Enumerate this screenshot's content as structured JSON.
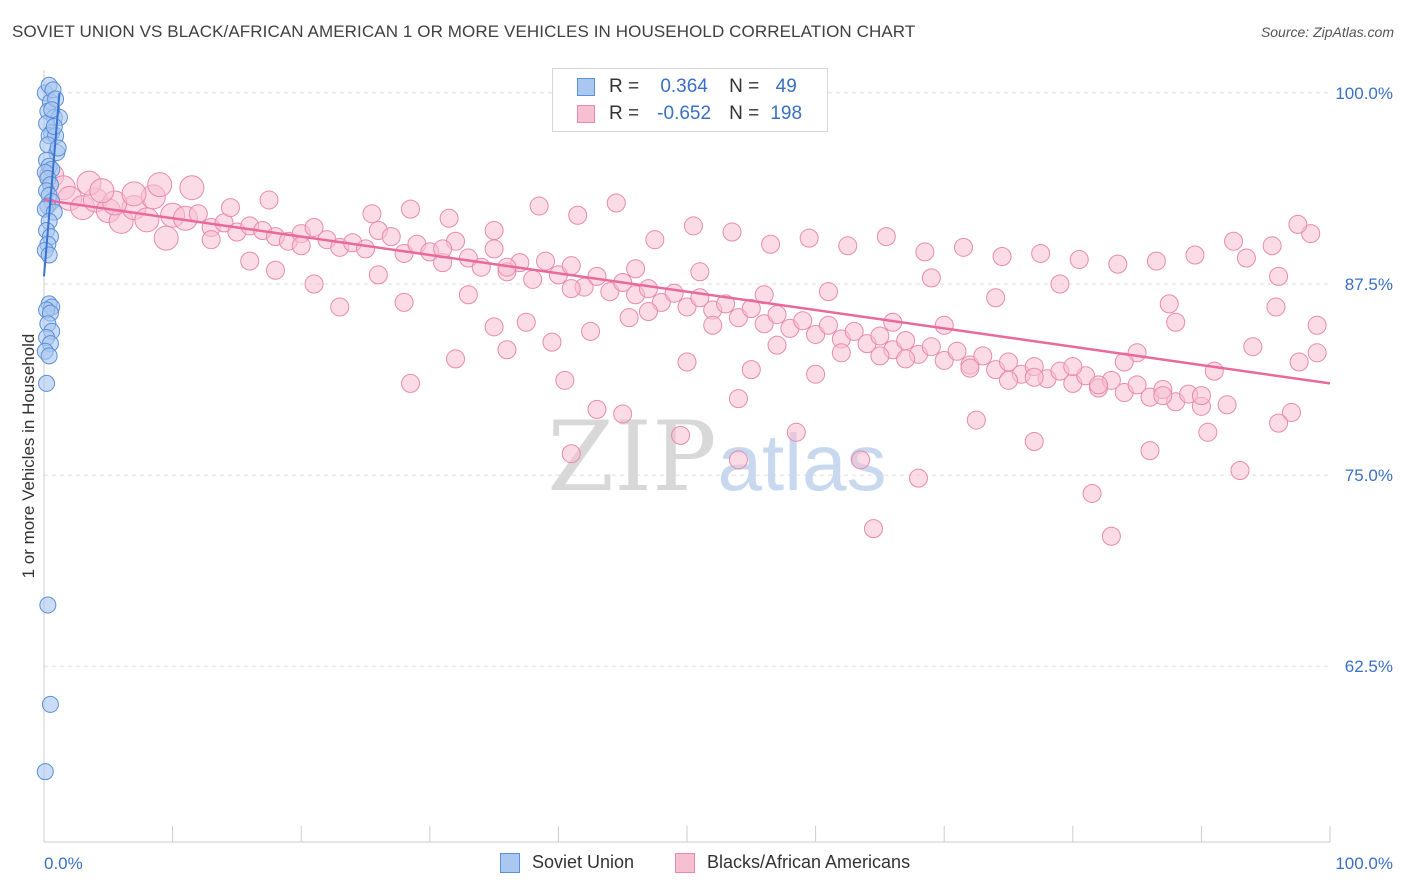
{
  "title": "SOVIET UNION VS BLACK/AFRICAN AMERICAN 1 OR MORE VEHICLES IN HOUSEHOLD CORRELATION CHART",
  "source": "Source: ZipAtlas.com",
  "watermark": {
    "zip": "ZIP",
    "atlas": "atlas"
  },
  "legend": {
    "rows": [
      {
        "r_label": "R =",
        "r_value": "0.364",
        "n_label": "N =",
        "n_value": "49"
      },
      {
        "r_label": "R =",
        "r_value": "-0.652",
        "n_label": "N =",
        "n_value": "198"
      }
    ]
  },
  "bottom_legend": [
    "Soviet Union",
    "Blacks/African Americans"
  ],
  "colors": {
    "blue_fill": "#a9c7f0",
    "blue_stroke": "#5b8fd6",
    "blue_line": "#3a74d0",
    "pink_fill": "#f7c0d2",
    "pink_stroke": "#e88aab",
    "pink_line": "#e8699a",
    "axis_label": "#3a6fc4",
    "grid": "#dddddd"
  },
  "chart_data": {
    "type": "scatter",
    "title": "SOVIET UNION VS BLACK/AFRICAN AMERICAN 1 OR MORE VEHICLES IN HOUSEHOLD CORRELATION CHART",
    "xlabel": "",
    "ylabel": "1 or more Vehicles in Household",
    "xlim": [
      0,
      100
    ],
    "ylim": [
      51,
      101.5
    ],
    "x_tick_labels": [
      "0.0%",
      "100.0%"
    ],
    "y_ticks": [
      100,
      87.5,
      75,
      62.5
    ],
    "y_tick_labels": [
      "100.0%",
      "87.5%",
      "75.0%",
      "62.5%"
    ],
    "grid": "horizontal dashed",
    "legend_position": "top-center",
    "series": [
      {
        "name": "Soviet Union",
        "r": 0.364,
        "n": 49,
        "trend": {
          "x": [
            0,
            1.2
          ],
          "y": [
            88.0,
            100.0
          ]
        },
        "points": [
          [
            0.1,
            100.0
          ],
          [
            0.4,
            100.5
          ],
          [
            0.5,
            99.4
          ],
          [
            0.3,
            98.8
          ],
          [
            0.8,
            98.4
          ],
          [
            1.2,
            98.4
          ],
          [
            0.2,
            98.0
          ],
          [
            0.6,
            97.4
          ],
          [
            0.4,
            97.2
          ],
          [
            0.9,
            97.2
          ],
          [
            0.3,
            96.6
          ],
          [
            1.0,
            96.1
          ],
          [
            0.2,
            95.6
          ],
          [
            0.4,
            95.2
          ],
          [
            0.6,
            95.0
          ],
          [
            0.1,
            94.8
          ],
          [
            0.3,
            94.4
          ],
          [
            0.5,
            94.0
          ],
          [
            0.2,
            93.6
          ],
          [
            0.4,
            93.3
          ],
          [
            0.6,
            92.9
          ],
          [
            0.3,
            92.6
          ],
          [
            0.1,
            92.4
          ],
          [
            0.8,
            92.2
          ],
          [
            0.4,
            91.6
          ],
          [
            0.2,
            91.0
          ],
          [
            0.5,
            90.6
          ],
          [
            0.3,
            90.1
          ],
          [
            0.1,
            89.7
          ],
          [
            0.4,
            89.4
          ],
          [
            0.4,
            86.2
          ],
          [
            0.6,
            86.0
          ],
          [
            0.2,
            85.8
          ],
          [
            0.5,
            85.6
          ],
          [
            0.3,
            84.9
          ],
          [
            0.6,
            84.4
          ],
          [
            0.2,
            84.0
          ],
          [
            0.5,
            83.6
          ],
          [
            0.1,
            83.1
          ],
          [
            0.4,
            82.8
          ],
          [
            0.2,
            81.0
          ],
          [
            0.3,
            66.5
          ],
          [
            0.5,
            60.0
          ],
          [
            0.1,
            55.6
          ],
          [
            0.7,
            100.2
          ],
          [
            0.9,
            99.6
          ],
          [
            0.6,
            98.9
          ],
          [
            0.8,
            97.8
          ],
          [
            1.1,
            96.4
          ]
        ]
      },
      {
        "name": "Blacks/African Americans",
        "r": -0.652,
        "n": 198,
        "trend": {
          "x": [
            0,
            100
          ],
          "y": [
            93.0,
            81.0
          ]
        },
        "points": [
          [
            0.6,
            94.6
          ],
          [
            1.5,
            93.8
          ],
          [
            2.0,
            93.1
          ],
          [
            3.0,
            92.5
          ],
          [
            4.0,
            93.0
          ],
          [
            5.0,
            92.3
          ],
          [
            6.0,
            91.6
          ],
          [
            7.0,
            92.5
          ],
          [
            8.5,
            93.2
          ],
          [
            10,
            92.0
          ],
          [
            11,
            91.8
          ],
          [
            12,
            92.1
          ],
          [
            13,
            91.2
          ],
          [
            14,
            91.5
          ],
          [
            15,
            90.9
          ],
          [
            16,
            91.3
          ],
          [
            17,
            91.0
          ],
          [
            18,
            90.6
          ],
          [
            19,
            90.3
          ],
          [
            20,
            90.8
          ],
          [
            21,
            91.2
          ],
          [
            22,
            90.4
          ],
          [
            23,
            89.9
          ],
          [
            24,
            90.2
          ],
          [
            25,
            89.8
          ],
          [
            26,
            91.0
          ],
          [
            27,
            90.6
          ],
          [
            28,
            89.5
          ],
          [
            29,
            90.1
          ],
          [
            30,
            89.6
          ],
          [
            31,
            88.9
          ],
          [
            32,
            90.3
          ],
          [
            33,
            89.2
          ],
          [
            34,
            88.6
          ],
          [
            35,
            89.8
          ],
          [
            36,
            88.3
          ],
          [
            37,
            88.9
          ],
          [
            38,
            87.8
          ],
          [
            39,
            89.0
          ],
          [
            40,
            88.1
          ],
          [
            41,
            88.7
          ],
          [
            42,
            87.3
          ],
          [
            43,
            88.0
          ],
          [
            44,
            87.0
          ],
          [
            45,
            87.6
          ],
          [
            46,
            86.8
          ],
          [
            47,
            87.2
          ],
          [
            48,
            86.3
          ],
          [
            49,
            86.9
          ],
          [
            50,
            86.0
          ],
          [
            51,
            86.6
          ],
          [
            52,
            85.8
          ],
          [
            53,
            86.2
          ],
          [
            54,
            85.3
          ],
          [
            55,
            85.9
          ],
          [
            56,
            84.9
          ],
          [
            57,
            85.5
          ],
          [
            58,
            84.6
          ],
          [
            59,
            85.1
          ],
          [
            60,
            84.2
          ],
          [
            61,
            84.8
          ],
          [
            62,
            83.9
          ],
          [
            63,
            84.4
          ],
          [
            64,
            83.6
          ],
          [
            65,
            84.1
          ],
          [
            66,
            83.2
          ],
          [
            67,
            83.8
          ],
          [
            68,
            82.9
          ],
          [
            69,
            83.4
          ],
          [
            70,
            82.5
          ],
          [
            71,
            83.1
          ],
          [
            72,
            82.2
          ],
          [
            73,
            82.8
          ],
          [
            74,
            81.9
          ],
          [
            75,
            82.4
          ],
          [
            76,
            81.6
          ],
          [
            77,
            82.1
          ],
          [
            78,
            81.3
          ],
          [
            79,
            81.8
          ],
          [
            80,
            81.0
          ],
          [
            81,
            81.5
          ],
          [
            82,
            80.7
          ],
          [
            83,
            81.2
          ],
          [
            84,
            80.4
          ],
          [
            85,
            80.9
          ],
          [
            86,
            80.1
          ],
          [
            87,
            80.6
          ],
          [
            88,
            79.8
          ],
          [
            89,
            80.3
          ],
          [
            90,
            79.5
          ],
          [
            3.5,
            94.1
          ],
          [
            5.5,
            92.8
          ],
          [
            8,
            91.7
          ],
          [
            9,
            94.0
          ],
          [
            11.5,
            93.8
          ],
          [
            14.5,
            92.5
          ],
          [
            17.5,
            93.0
          ],
          [
            20,
            90.0
          ],
          [
            25.5,
            92.1
          ],
          [
            28.5,
            92.4
          ],
          [
            31.5,
            91.8
          ],
          [
            35,
            91.0
          ],
          [
            38.5,
            92.6
          ],
          [
            41.5,
            92.0
          ],
          [
            44.5,
            92.8
          ],
          [
            47.5,
            90.4
          ],
          [
            50.5,
            91.3
          ],
          [
            53.5,
            90.9
          ],
          [
            56.5,
            90.1
          ],
          [
            59.5,
            90.5
          ],
          [
            62.5,
            90.0
          ],
          [
            65.5,
            90.6
          ],
          [
            68.5,
            89.6
          ],
          [
            71.5,
            89.9
          ],
          [
            74.5,
            89.3
          ],
          [
            77.5,
            89.5
          ],
          [
            80.5,
            89.1
          ],
          [
            83.5,
            88.8
          ],
          [
            86.5,
            89.0
          ],
          [
            89.5,
            89.4
          ],
          [
            92.5,
            90.3
          ],
          [
            95.5,
            90.0
          ],
          [
            98.5,
            90.8
          ],
          [
            97.5,
            91.4
          ],
          [
            93.5,
            89.2
          ],
          [
            96,
            88.0
          ],
          [
            18,
            88.4
          ],
          [
            23,
            86.0
          ],
          [
            28,
            86.3
          ],
          [
            33,
            86.8
          ],
          [
            37.5,
            85.0
          ],
          [
            42.5,
            84.4
          ],
          [
            47,
            85.7
          ],
          [
            52,
            84.8
          ],
          [
            57,
            83.5
          ],
          [
            62,
            83.0
          ],
          [
            67,
            82.6
          ],
          [
            72,
            82.0
          ],
          [
            77,
            81.4
          ],
          [
            82,
            80.9
          ],
          [
            87,
            80.2
          ],
          [
            92,
            79.6
          ],
          [
            97,
            79.1
          ],
          [
            99,
            84.8
          ],
          [
            28.5,
            81.0
          ],
          [
            32,
            82.6
          ],
          [
            36,
            83.2
          ],
          [
            40.5,
            81.2
          ],
          [
            45,
            79.0
          ],
          [
            49.5,
            77.6
          ],
          [
            54,
            80.0
          ],
          [
            58.5,
            77.8
          ],
          [
            63.5,
            76.0
          ],
          [
            68,
            74.8
          ],
          [
            72.5,
            78.6
          ],
          [
            77,
            77.2
          ],
          [
            81.5,
            73.8
          ],
          [
            83,
            71.0
          ],
          [
            86,
            76.6
          ],
          [
            90.5,
            77.8
          ],
          [
            93,
            75.3
          ],
          [
            96,
            78.4
          ],
          [
            64.5,
            71.5
          ],
          [
            54,
            76.0
          ],
          [
            41,
            76.4
          ],
          [
            43,
            79.3
          ],
          [
            35,
            84.7
          ],
          [
            39.5,
            83.7
          ],
          [
            45.5,
            85.3
          ],
          [
            50,
            82.4
          ],
          [
            55,
            81.9
          ],
          [
            60,
            81.6
          ],
          [
            65,
            82.8
          ],
          [
            70,
            84.8
          ],
          [
            75,
            81.2
          ],
          [
            80,
            82.1
          ],
          [
            85,
            83.0
          ],
          [
            88,
            85.0
          ],
          [
            91,
            81.8
          ],
          [
            94,
            83.4
          ],
          [
            99,
            83.0
          ],
          [
            97.6,
            82.4
          ],
          [
            95.8,
            86.0
          ],
          [
            90,
            80.2
          ],
          [
            87.5,
            86.2
          ],
          [
            84,
            82.4
          ],
          [
            79,
            87.5
          ],
          [
            74,
            86.6
          ],
          [
            69,
            87.9
          ],
          [
            66,
            85.0
          ],
          [
            61,
            87.0
          ],
          [
            56,
            86.8
          ],
          [
            51,
            88.3
          ],
          [
            46,
            88.5
          ],
          [
            41,
            87.2
          ],
          [
            36,
            88.6
          ],
          [
            31,
            89.8
          ],
          [
            26,
            88.1
          ],
          [
            21,
            87.5
          ],
          [
            16,
            89.0
          ],
          [
            13,
            90.4
          ],
          [
            9.5,
            90.5
          ],
          [
            7,
            93.4
          ],
          [
            4.5,
            93.6
          ]
        ]
      }
    ]
  }
}
